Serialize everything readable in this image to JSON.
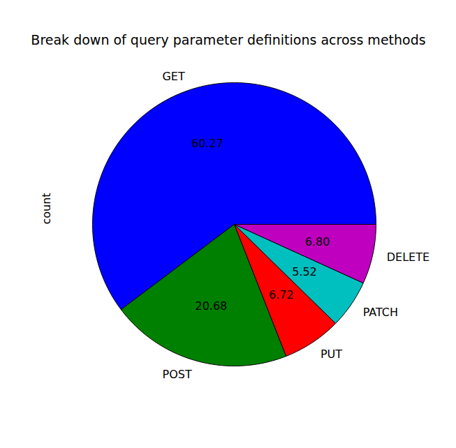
{
  "chart_data": {
    "type": "pie",
    "title": "Break down of query parameter definitions across methods",
    "ylabel": "count",
    "categories": [
      "GET",
      "POST",
      "PUT",
      "PATCH",
      "DELETE"
    ],
    "values": [
      60.27,
      20.68,
      6.72,
      5.52,
      6.8
    ],
    "value_labels": [
      "60.27",
      "20.68",
      "6.72",
      "5.52",
      "6.80"
    ],
    "colors": [
      "#0000ff",
      "#008000",
      "#ff0000",
      "#00bfbf",
      "#bf00bf"
    ],
    "data_labels": true
  }
}
